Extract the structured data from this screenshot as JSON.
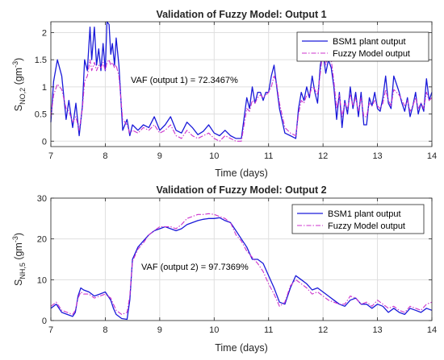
{
  "colors": {
    "plant": "#1a1ad9",
    "fuzzy": "#cc33cc",
    "axis": "#262626",
    "grid": "#dfdfdf"
  },
  "chart_data": [
    {
      "type": "line",
      "title": "Validation of Fuzzy Model: Output 1",
      "xlabel": "Time (days)",
      "ylabel": {
        "main": "S",
        "sub": "NO,2",
        "unit": "(gm",
        "exp": "-3",
        "close": ")"
      },
      "xlim": [
        7,
        14
      ],
      "ylim": [
        -0.1,
        2.2
      ],
      "xticks": [
        7,
        8,
        9,
        10,
        11,
        12,
        13,
        14
      ],
      "yticks": [
        0,
        0.5,
        1,
        1.5,
        2
      ],
      "ytick_labels": [
        "0",
        "0.5",
        "1",
        "1.5",
        "2"
      ],
      "grid": true,
      "legend_position": "top-right",
      "annotation": "VAF (output 1) = 72.3467%",
      "series": [
        {
          "name": "BSM1 plant output",
          "style": "solid",
          "x": [
            7.0,
            7.05,
            7.12,
            7.2,
            7.28,
            7.33,
            7.4,
            7.46,
            7.52,
            7.58,
            7.62,
            7.67,
            7.72,
            7.75,
            7.8,
            7.84,
            7.88,
            7.92,
            7.96,
            8.0,
            8.03,
            8.07,
            8.1,
            8.13,
            8.17,
            8.2,
            8.25,
            8.32,
            8.4,
            8.45,
            8.5,
            8.6,
            8.7,
            8.8,
            8.9,
            9.0,
            9.1,
            9.2,
            9.3,
            9.4,
            9.5,
            9.6,
            9.7,
            9.8,
            9.9,
            10.0,
            10.1,
            10.2,
            10.3,
            10.4,
            10.5,
            10.6,
            10.65,
            10.7,
            10.75,
            10.8,
            10.85,
            10.9,
            10.95,
            11.0,
            11.05,
            11.1,
            11.15,
            11.2,
            11.3,
            11.4,
            11.5,
            11.55,
            11.6,
            11.65,
            11.7,
            11.75,
            11.8,
            11.85,
            11.9,
            11.95,
            12.0,
            12.05,
            12.1,
            12.15,
            12.2,
            12.25,
            12.3,
            12.35,
            12.4,
            12.45,
            12.5,
            12.55,
            12.6,
            12.65,
            12.7,
            12.75,
            12.8,
            12.85,
            12.9,
            12.95,
            13.0,
            13.05,
            13.1,
            13.15,
            13.2,
            13.25,
            13.3,
            13.35,
            13.4,
            13.45,
            13.5,
            13.55,
            13.6,
            13.65,
            13.7,
            13.75,
            13.8,
            13.85,
            13.9,
            13.95,
            14.0
          ],
          "y": [
            0.35,
            1.1,
            1.5,
            1.2,
            0.4,
            0.75,
            0.25,
            0.7,
            0.1,
            0.65,
            1.5,
            1.3,
            2.1,
            1.5,
            2.1,
            1.4,
            1.7,
            1.3,
            1.8,
            1.3,
            2.2,
            2.15,
            1.6,
            1.8,
            1.4,
            1.9,
            1.4,
            0.2,
            0.4,
            0.1,
            0.3,
            0.2,
            0.3,
            0.25,
            0.45,
            0.2,
            0.3,
            0.45,
            0.2,
            0.15,
            0.35,
            0.25,
            0.12,
            0.18,
            0.3,
            0.15,
            0.1,
            0.2,
            0.1,
            0.05,
            0.05,
            0.8,
            0.6,
            1.0,
            0.7,
            0.9,
            0.9,
            0.75,
            0.9,
            0.9,
            1.2,
            1.4,
            1.0,
            0.6,
            0.15,
            0.1,
            0.05,
            0.6,
            0.9,
            0.75,
            1.0,
            0.8,
            1.2,
            0.9,
            0.7,
            1.4,
            1.65,
            1.25,
            1.5,
            1.35,
            1.0,
            0.4,
            0.9,
            0.25,
            0.75,
            0.5,
            1.0,
            0.6,
            0.9,
            0.45,
            0.9,
            0.3,
            0.3,
            0.8,
            0.65,
            0.9,
            0.6,
            0.55,
            0.8,
            1.2,
            0.7,
            0.6,
            1.2,
            1.05,
            0.9,
            0.7,
            0.55,
            0.8,
            0.45,
            0.65,
            0.9,
            0.5,
            0.7,
            0.55,
            1.15,
            0.75,
            0.9
          ]
        },
        {
          "name": "Fuzzy Model output",
          "style": "dash-dot",
          "x": [
            7.0,
            7.05,
            7.12,
            7.2,
            7.28,
            7.33,
            7.4,
            7.46,
            7.52,
            7.58,
            7.62,
            7.67,
            7.72,
            7.75,
            7.8,
            7.84,
            7.88,
            7.92,
            7.96,
            8.0,
            8.03,
            8.07,
            8.1,
            8.13,
            8.17,
            8.2,
            8.25,
            8.32,
            8.4,
            8.45,
            8.5,
            8.6,
            8.7,
            8.8,
            8.9,
            9.0,
            9.1,
            9.2,
            9.3,
            9.4,
            9.5,
            9.6,
            9.7,
            9.8,
            9.9,
            10.0,
            10.1,
            10.2,
            10.3,
            10.4,
            10.5,
            10.6,
            10.65,
            10.7,
            10.75,
            10.8,
            10.85,
            10.9,
            10.95,
            11.0,
            11.05,
            11.1,
            11.15,
            11.2,
            11.3,
            11.4,
            11.5,
            11.55,
            11.6,
            11.65,
            11.7,
            11.75,
            11.8,
            11.85,
            11.9,
            11.95,
            12.0,
            12.05,
            12.1,
            12.15,
            12.2,
            12.25,
            12.3,
            12.35,
            12.4,
            12.45,
            12.5,
            12.55,
            12.6,
            12.65,
            12.7,
            12.75,
            12.8,
            12.85,
            12.9,
            12.95,
            13.0,
            13.05,
            13.1,
            13.15,
            13.2,
            13.25,
            13.3,
            13.35,
            13.4,
            13.45,
            13.5,
            13.55,
            13.6,
            13.65,
            13.7,
            13.75,
            13.8,
            13.85,
            13.9,
            13.95,
            14.0
          ],
          "y": [
            0.45,
            0.85,
            1.05,
            0.95,
            0.6,
            0.55,
            0.35,
            0.45,
            0.2,
            0.6,
            1.1,
            1.2,
            1.5,
            1.3,
            1.45,
            1.3,
            1.4,
            1.35,
            1.45,
            1.3,
            1.45,
            1.5,
            1.4,
            1.45,
            1.35,
            1.4,
            1.2,
            0.4,
            0.3,
            0.15,
            0.2,
            0.15,
            0.25,
            0.2,
            0.3,
            0.15,
            0.2,
            0.3,
            0.1,
            0.05,
            0.2,
            0.1,
            0.05,
            0.1,
            0.15,
            0.05,
            0.0,
            0.1,
            0.05,
            0.0,
            0.0,
            0.6,
            0.55,
            0.75,
            0.7,
            0.8,
            0.85,
            0.8,
            0.85,
            0.9,
            1.0,
            1.2,
            1.05,
            0.7,
            0.25,
            0.15,
            0.1,
            0.5,
            0.75,
            0.7,
            0.85,
            0.85,
            1.0,
            0.95,
            0.85,
            1.25,
            1.7,
            1.4,
            1.6,
            1.5,
            1.1,
            0.6,
            0.85,
            0.45,
            0.7,
            0.6,
            0.85,
            0.65,
            0.8,
            0.55,
            0.8,
            0.45,
            0.45,
            0.7,
            0.65,
            0.75,
            0.65,
            0.6,
            0.7,
            0.95,
            0.75,
            0.65,
            0.95,
            0.9,
            0.85,
            0.75,
            0.65,
            0.75,
            0.55,
            0.65,
            0.8,
            0.6,
            0.7,
            0.6,
            0.9,
            0.75,
            0.8
          ]
        }
      ]
    },
    {
      "type": "line",
      "title": "Validation of Fuzzy Model: Output 2",
      "xlabel": "Time  (days)",
      "ylabel": {
        "main": "S",
        "sub": "NH,5",
        "unit": "(gm",
        "exp": "-3",
        "close": ")"
      },
      "xlim": [
        7,
        14
      ],
      "ylim": [
        0,
        30
      ],
      "xticks": [
        7,
        8,
        9,
        10,
        11,
        12,
        13,
        14
      ],
      "yticks": [
        0,
        10,
        20,
        30
      ],
      "ytick_labels": [
        "0",
        "10",
        "20",
        "30"
      ],
      "grid": true,
      "legend_position": "top-right",
      "annotation": "VAF (output 2) = 97.7369%",
      "series": [
        {
          "name": "BSM1 plant output",
          "style": "solid",
          "x": [
            7.0,
            7.1,
            7.2,
            7.3,
            7.4,
            7.45,
            7.5,
            7.55,
            7.6,
            7.7,
            7.8,
            7.9,
            8.0,
            8.05,
            8.1,
            8.15,
            8.2,
            8.3,
            8.4,
            8.45,
            8.5,
            8.6,
            8.7,
            8.8,
            8.9,
            9.0,
            9.1,
            9.2,
            9.3,
            9.4,
            9.5,
            9.6,
            9.7,
            9.8,
            9.9,
            10.0,
            10.1,
            10.2,
            10.3,
            10.4,
            10.5,
            10.6,
            10.7,
            10.8,
            10.9,
            11.0,
            11.1,
            11.2,
            11.3,
            11.4,
            11.5,
            11.6,
            11.7,
            11.8,
            11.9,
            12.0,
            12.1,
            12.2,
            12.3,
            12.4,
            12.5,
            12.6,
            12.7,
            12.8,
            12.9,
            13.0,
            13.1,
            13.2,
            13.3,
            13.4,
            13.5,
            13.6,
            13.7,
            13.8,
            13.9,
            14.0
          ],
          "y": [
            3.0,
            4.0,
            2.0,
            1.5,
            1.0,
            2.0,
            6.0,
            8.0,
            7.5,
            7.0,
            6.0,
            6.5,
            7.0,
            6.0,
            5.0,
            3.0,
            1.5,
            0.5,
            0.3,
            5.0,
            15.0,
            18.0,
            19.5,
            21.0,
            22.0,
            22.5,
            23.0,
            22.5,
            22.0,
            22.5,
            23.5,
            24.0,
            24.5,
            24.8,
            25.0,
            25.0,
            25.2,
            24.5,
            24.0,
            22.0,
            20.0,
            18.0,
            15.0,
            15.0,
            14.0,
            11.0,
            8.0,
            4.5,
            4.0,
            8.0,
            11.0,
            10.0,
            9.0,
            7.5,
            8.0,
            7.0,
            6.0,
            5.0,
            4.0,
            3.5,
            5.0,
            5.5,
            4.0,
            4.0,
            3.0,
            4.0,
            3.5,
            2.0,
            3.0,
            2.0,
            1.5,
            3.0,
            2.5,
            2.0,
            3.0,
            2.5
          ]
        },
        {
          "name": "Fuzzy Model output",
          "style": "dash-dot",
          "x": [
            7.0,
            7.1,
            7.2,
            7.3,
            7.4,
            7.45,
            7.5,
            7.55,
            7.6,
            7.7,
            7.8,
            7.9,
            8.0,
            8.05,
            8.1,
            8.15,
            8.2,
            8.3,
            8.4,
            8.45,
            8.5,
            8.6,
            8.7,
            8.8,
            8.9,
            9.0,
            9.1,
            9.2,
            9.3,
            9.4,
            9.5,
            9.6,
            9.7,
            9.8,
            9.9,
            10.0,
            10.1,
            10.2,
            10.3,
            10.4,
            10.5,
            10.6,
            10.7,
            10.8,
            10.9,
            11.0,
            11.1,
            11.2,
            11.3,
            11.4,
            11.5,
            11.6,
            11.7,
            11.8,
            11.9,
            12.0,
            12.1,
            12.2,
            12.3,
            12.4,
            12.5,
            12.6,
            12.7,
            12.8,
            12.9,
            13.0,
            13.1,
            13.2,
            13.3,
            13.4,
            13.5,
            13.6,
            13.7,
            13.8,
            13.9,
            14.0
          ],
          "y": [
            3.5,
            4.5,
            2.5,
            2.0,
            1.5,
            2.5,
            5.5,
            7.0,
            6.5,
            6.5,
            5.5,
            6.0,
            6.5,
            6.0,
            5.5,
            4.0,
            2.5,
            1.5,
            2.0,
            6.0,
            14.5,
            17.5,
            19.0,
            21.0,
            22.0,
            23.0,
            23.0,
            23.0,
            22.5,
            23.5,
            25.0,
            25.5,
            26.0,
            26.0,
            26.2,
            26.0,
            25.5,
            25.0,
            24.0,
            21.0,
            19.5,
            17.0,
            15.5,
            14.0,
            12.0,
            9.0,
            6.5,
            3.5,
            4.5,
            8.5,
            10.0,
            9.0,
            8.0,
            6.5,
            7.0,
            6.0,
            5.0,
            4.5,
            4.0,
            4.0,
            6.0,
            5.5,
            4.0,
            4.5,
            3.5,
            5.0,
            4.0,
            3.0,
            3.5,
            2.5,
            2.0,
            3.5,
            3.0,
            2.5,
            4.0,
            4.5
          ]
        }
      ]
    }
  ]
}
